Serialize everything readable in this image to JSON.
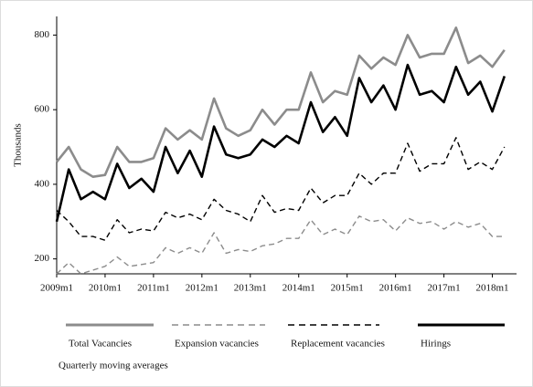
{
  "chart_data": {
    "type": "line",
    "y_label": "Thousands",
    "note": "Quarterly moving averages",
    "x": [
      2009,
      2009.25,
      2009.5,
      2009.75,
      2010,
      2010.25,
      2010.5,
      2010.75,
      2011,
      2011.25,
      2011.5,
      2011.75,
      2012,
      2012.25,
      2012.5,
      2012.75,
      2013,
      2013.25,
      2013.5,
      2013.75,
      2014,
      2014.25,
      2014.5,
      2014.75,
      2015,
      2015.25,
      2015.5,
      2015.75,
      2016,
      2016.25,
      2016.5,
      2016.75,
      2017,
      2017.25,
      2017.5,
      2017.75,
      2018,
      2018.25
    ],
    "xlim": [
      2009,
      2018.5
    ],
    "xticks": [
      {
        "value": 2009,
        "label": "2009m1"
      },
      {
        "value": 2010,
        "label": "2010m1"
      },
      {
        "value": 2011,
        "label": "2011m1"
      },
      {
        "value": 2012,
        "label": "2012m1"
      },
      {
        "value": 2013,
        "label": "2013m1"
      },
      {
        "value": 2014,
        "label": "2014m1"
      },
      {
        "value": 2015,
        "label": "2015m1"
      },
      {
        "value": 2016,
        "label": "2016m1"
      },
      {
        "value": 2017,
        "label": "2017m1"
      },
      {
        "value": 2018,
        "label": "2018m1"
      }
    ],
    "ylim": [
      160,
      850
    ],
    "yticks": [
      200,
      400,
      600,
      800
    ],
    "series": [
      {
        "name": "Total Vacancies",
        "color": "#8c8c8c",
        "style": "solid",
        "values": [
          460,
          500,
          440,
          420,
          425,
          500,
          460,
          460,
          470,
          550,
          520,
          545,
          520,
          630,
          550,
          530,
          545,
          600,
          560,
          600,
          600,
          700,
          620,
          650,
          640,
          745,
          710,
          740,
          720,
          800,
          740,
          750,
          750,
          820,
          725,
          745,
          715,
          760
        ]
      },
      {
        "name": "Expansion vacancies",
        "color": "#8c8c8c",
        "style": "dashed",
        "values": [
          160,
          190,
          160,
          170,
          180,
          205,
          180,
          185,
          190,
          230,
          215,
          230,
          215,
          270,
          215,
          225,
          220,
          235,
          240,
          255,
          255,
          305,
          265,
          280,
          265,
          315,
          300,
          305,
          275,
          310,
          295,
          300,
          280,
          300,
          285,
          295,
          260,
          260
        ]
      },
      {
        "name": "Replacement vacancies",
        "color": "#000000",
        "style": "dashed",
        "values": [
          330,
          300,
          260,
          260,
          250,
          305,
          270,
          280,
          275,
          325,
          310,
          320,
          305,
          360,
          330,
          320,
          300,
          370,
          325,
          335,
          330,
          390,
          350,
          370,
          370,
          430,
          400,
          430,
          430,
          510,
          435,
          455,
          455,
          525,
          440,
          460,
          440,
          500
        ]
      },
      {
        "name": "Hirings",
        "color": "#000000",
        "style": "solid",
        "values": [
          300,
          440,
          360,
          380,
          360,
          455,
          390,
          415,
          380,
          500,
          430,
          490,
          420,
          555,
          480,
          470,
          480,
          520,
          500,
          530,
          510,
          620,
          540,
          580,
          530,
          685,
          620,
          665,
          600,
          720,
          640,
          650,
          620,
          715,
          640,
          675,
          595,
          690
        ]
      }
    ]
  }
}
